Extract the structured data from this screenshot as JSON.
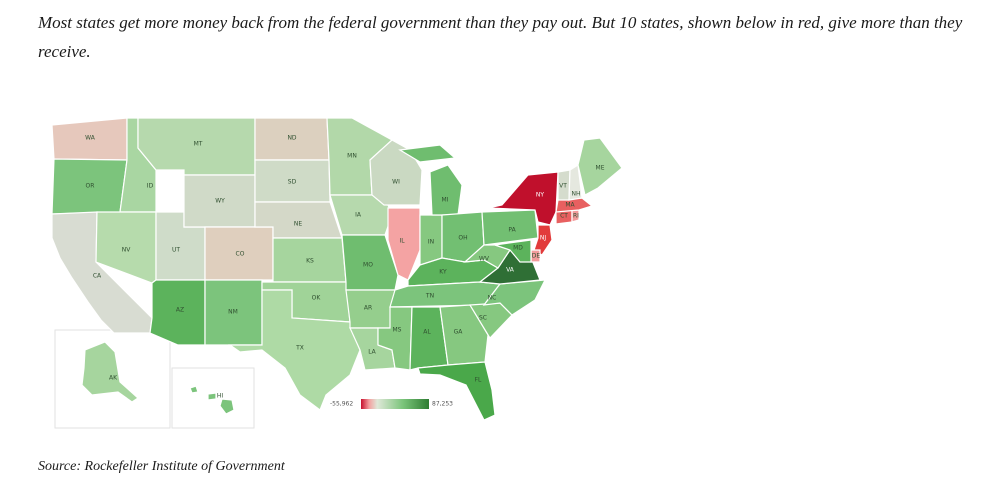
{
  "caption": "Most states get more money back from the federal government than they pay out. But 10 states, shown below in red, give more than they receive.",
  "source": "Source: Rockefeller Institute of Government",
  "legend": {
    "min_label": "-55,962",
    "max_label": "87,253",
    "min": -55962,
    "max": 87253,
    "colors": [
      "#c8102e",
      "#f4a0a0",
      "#dfe8d8",
      "#7ac47a",
      "#2e7d32"
    ]
  },
  "map": {
    "projection": "albers-usa",
    "states": [
      {
        "abbr": "WA",
        "fill": "#e6c8bc"
      },
      {
        "abbr": "OR",
        "fill": "#7cc47c"
      },
      {
        "abbr": "CA",
        "fill": "#d8dcd2"
      },
      {
        "abbr": "ID",
        "fill": "#a9d6a2"
      },
      {
        "abbr": "NV",
        "fill": "#b6dbac"
      },
      {
        "abbr": "UT",
        "fill": "#cfdcc9"
      },
      {
        "abbr": "AZ",
        "fill": "#5cb35c"
      },
      {
        "abbr": "MT",
        "fill": "#b6d9ad"
      },
      {
        "abbr": "WY",
        "fill": "#d0dac8"
      },
      {
        "abbr": "CO",
        "fill": "#dfcfbe"
      },
      {
        "abbr": "NM",
        "fill": "#7cc47c"
      },
      {
        "abbr": "ND",
        "fill": "#dcd0bf"
      },
      {
        "abbr": "SD",
        "fill": "#cfdbc7"
      },
      {
        "abbr": "NE",
        "fill": "#d4d8c8"
      },
      {
        "abbr": "KS",
        "fill": "#a6d59e"
      },
      {
        "abbr": "OK",
        "fill": "#a0d398"
      },
      {
        "abbr": "TX",
        "fill": "#aedaa5"
      },
      {
        "abbr": "MN",
        "fill": "#b2d8a9"
      },
      {
        "abbr": "IA",
        "fill": "#b6d9ad"
      },
      {
        "abbr": "MO",
        "fill": "#6fbd6f"
      },
      {
        "abbr": "AR",
        "fill": "#95ce8d"
      },
      {
        "abbr": "LA",
        "fill": "#a6d59e"
      },
      {
        "abbr": "WI",
        "fill": "#cad9c2"
      },
      {
        "abbr": "IL",
        "fill": "#f4a3a3"
      },
      {
        "abbr": "IN",
        "fill": "#86c880"
      },
      {
        "abbr": "MI",
        "fill": "#6fbd6f"
      },
      {
        "abbr": "OH",
        "fill": "#72bf72"
      },
      {
        "abbr": "KY",
        "fill": "#5cb35c"
      },
      {
        "abbr": "TN",
        "fill": "#7cc47c"
      },
      {
        "abbr": "MS",
        "fill": "#86c880"
      },
      {
        "abbr": "AL",
        "fill": "#5cb35c"
      },
      {
        "abbr": "GA",
        "fill": "#86c880"
      },
      {
        "abbr": "FL",
        "fill": "#4aa84a"
      },
      {
        "abbr": "SC",
        "fill": "#86c880"
      },
      {
        "abbr": "NC",
        "fill": "#7cc47c"
      },
      {
        "abbr": "VA",
        "fill": "#2f6f35"
      },
      {
        "abbr": "WV",
        "fill": "#86c880"
      },
      {
        "abbr": "PA",
        "fill": "#72bf72"
      },
      {
        "abbr": "NY",
        "fill": "#c0102c"
      },
      {
        "abbr": "NJ",
        "fill": "#e23b3b"
      },
      {
        "abbr": "DE",
        "fill": "#f19b9b"
      },
      {
        "abbr": "MD",
        "fill": "#5cb35c"
      },
      {
        "abbr": "CT",
        "fill": "#e86060"
      },
      {
        "abbr": "RI",
        "fill": "#f19b9b"
      },
      {
        "abbr": "MA",
        "fill": "#e86060"
      },
      {
        "abbr": "VT",
        "fill": "#d5dccd"
      },
      {
        "abbr": "NH",
        "fill": "#e5e8df"
      },
      {
        "abbr": "ME",
        "fill": "#a6d59e"
      },
      {
        "abbr": "AK",
        "fill": "#a6d59e"
      },
      {
        "abbr": "HI",
        "fill": "#7cc47c"
      }
    ]
  }
}
